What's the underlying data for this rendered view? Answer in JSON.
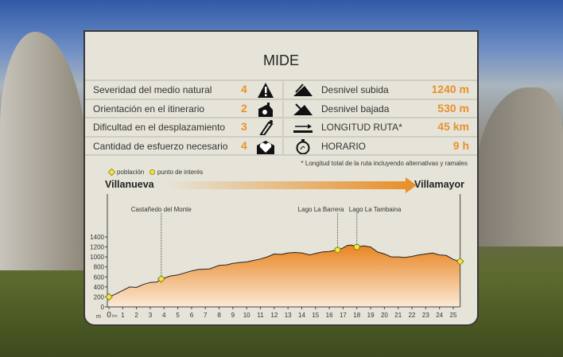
{
  "title": "MIDE",
  "mide": [
    {
      "label": "Severidad del medio natural",
      "value": "4",
      "icon": "warning-mountain-icon"
    },
    {
      "label": "Orientación en el itinerario",
      "value": "2",
      "icon": "orientation-icon"
    },
    {
      "label": "Dificultad en el desplazamiento",
      "value": "3",
      "icon": "boot-icon"
    },
    {
      "label": "Cantidad de esfuerzo necesario",
      "value": "4",
      "icon": "heart-effort-icon"
    }
  ],
  "route": [
    {
      "label": "Desnivel subida",
      "value": "1240 m",
      "icon": "ascent-icon"
    },
    {
      "label": "Desnivel bajada",
      "value": "530 m",
      "icon": "descent-icon"
    },
    {
      "label": "LONGITUD RUTA*",
      "value": "45 km",
      "icon": "length-icon"
    },
    {
      "label": "HORARIO",
      "value": "9 h",
      "icon": "stopwatch-icon"
    }
  ],
  "note": "* Longitud total de la ruta incluyendo alternativas y ramales",
  "legend": {
    "town": "población",
    "poi": "punto de interés"
  },
  "start": "Villanueva",
  "end": "Villamayor",
  "colors": {
    "accent": "#e8912c",
    "fill_top": "#e8841f",
    "fill_bottom": "#fbe9d6",
    "marker": "#f1e54a"
  },
  "chart_data": {
    "type": "area",
    "xlabel": "km",
    "ylabel": "m",
    "xlim": [
      0,
      25.5
    ],
    "ylim": [
      0,
      1400
    ],
    "xticks": [
      0,
      1,
      2,
      3,
      4,
      5,
      6,
      7,
      8,
      9,
      10,
      11,
      12,
      13,
      14,
      15,
      16,
      17,
      18,
      19,
      20,
      21,
      22,
      23,
      24,
      25
    ],
    "yticks": [
      0,
      200,
      400,
      600,
      800,
      1000,
      1200,
      1400
    ],
    "x": [
      0,
      0.5,
      1,
      1.5,
      2,
      2.5,
      3,
      3.5,
      3.8,
      4.5,
      5,
      6,
      6.5,
      7.3,
      8,
      8.5,
      9,
      9.5,
      10,
      11,
      11.5,
      12,
      12.5,
      13,
      13.5,
      14,
      14.6,
      15,
      15.5,
      16,
      16.6,
      17,
      17.3,
      17.6,
      18,
      18.5,
      19,
      19.5,
      20,
      20.5,
      21,
      21.5,
      22,
      22.5,
      23,
      23.5,
      24,
      24.5,
      25,
      25.5
    ],
    "y": [
      200,
      260,
      330,
      400,
      390,
      450,
      490,
      500,
      560,
      620,
      640,
      720,
      750,
      760,
      830,
      840,
      870,
      890,
      900,
      960,
      1000,
      1060,
      1050,
      1080,
      1090,
      1080,
      1040,
      1070,
      1100,
      1110,
      1140,
      1180,
      1230,
      1240,
      1200,
      1220,
      1200,
      1100,
      1060,
      1000,
      1000,
      990,
      1010,
      1040,
      1060,
      1080,
      1040,
      1030,
      950,
      910
    ],
    "markers": [
      {
        "x": 0,
        "y": 200,
        "type": "town"
      },
      {
        "x": 3.8,
        "y": 560,
        "type": "town",
        "label": "Castañedo del Monte"
      },
      {
        "x": 16.6,
        "y": 1140,
        "type": "poi",
        "label": "Lago La Barrera"
      },
      {
        "x": 18,
        "y": 1200,
        "type": "poi",
        "label": "Lago La Tambaina"
      },
      {
        "x": 25.5,
        "y": 910,
        "type": "town"
      }
    ]
  }
}
